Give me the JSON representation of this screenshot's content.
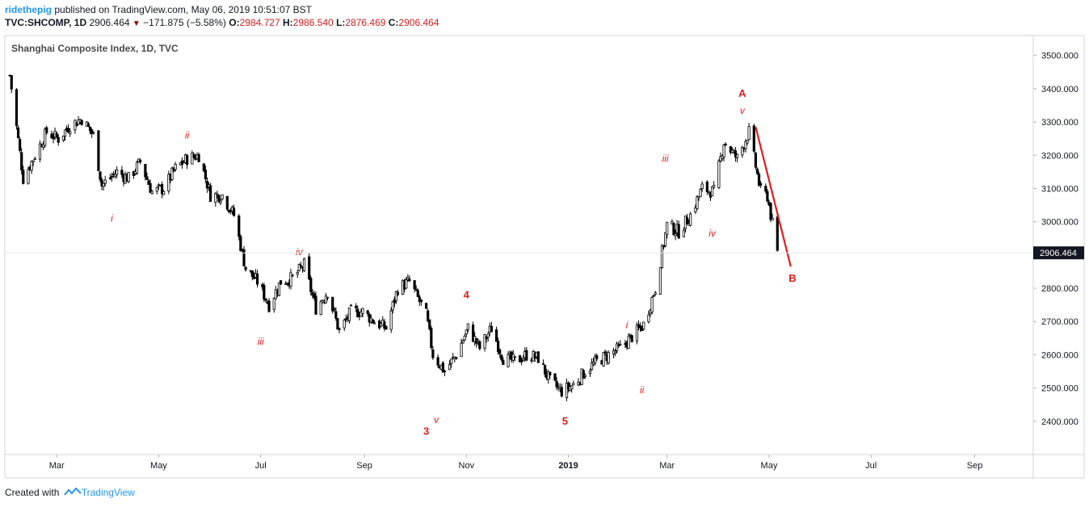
{
  "header": {
    "author": "ridethepig",
    "published": "published on TradingView.com, May 06, 2019 10:51:07 BST",
    "symbol": "TVC:SHCOMP, 1D",
    "last": "2906.464",
    "change": "−171.875 (−5.58%)",
    "o_label": "O:",
    "o_val": "2984.727",
    "h_label": "H:",
    "h_val": "2986.540",
    "l_label": "L:",
    "l_val": "2876.469",
    "c_label": "C:",
    "c_val": "2906.464"
  },
  "footer": {
    "created": "Created with",
    "brand": "TradingView"
  },
  "colors": {
    "candle": "#000000",
    "annotation": "#e31b1b",
    "axis": "#787b86",
    "price_badge": "#131722"
  },
  "chart_data": {
    "type": "candlestick",
    "title": "Shanghai Composite Index, 1D, TVC",
    "y_ticks": [
      "2400.000",
      "2500.000",
      "2600.000",
      "2700.000",
      "2800.000",
      "2900.000",
      "3000.000",
      "3100.000",
      "3200.000",
      "3300.000",
      "3400.000",
      "3500.000"
    ],
    "ylim": [
      2300,
      3560
    ],
    "x_ticks": [
      "Mar",
      "May",
      "Jul",
      "Sep",
      "Nov",
      "2019",
      "Mar",
      "May",
      "Jul",
      "Sep"
    ],
    "last_price": "2906.464",
    "xlim": [
      "2018-01-29",
      "2019-10-06"
    ],
    "series": [
      {
        "date": "2018-02-01",
        "close": 3440
      },
      {
        "date": "2018-02-09",
        "close": 3130
      },
      {
        "date": "2018-02-16",
        "close": 3200
      },
      {
        "date": "2018-02-23",
        "close": 3270
      },
      {
        "date": "2018-03-02",
        "close": 3250
      },
      {
        "date": "2018-03-09",
        "close": 3290
      },
      {
        "date": "2018-03-16",
        "close": 3310
      },
      {
        "date": "2018-03-23",
        "close": 3260
      },
      {
        "date": "2018-03-28",
        "close": 3110
      },
      {
        "date": "2018-04-06",
        "close": 3150
      },
      {
        "date": "2018-04-13",
        "close": 3130
      },
      {
        "date": "2018-04-20",
        "close": 3180
      },
      {
        "date": "2018-04-27",
        "close": 3090
      },
      {
        "date": "2018-05-04",
        "close": 3100
      },
      {
        "date": "2018-05-11",
        "close": 3160
      },
      {
        "date": "2018-05-18",
        "close": 3190
      },
      {
        "date": "2018-05-25",
        "close": 3200
      },
      {
        "date": "2018-06-01",
        "close": 3080
      },
      {
        "date": "2018-06-08",
        "close": 3080
      },
      {
        "date": "2018-06-15",
        "close": 3020
      },
      {
        "date": "2018-06-22",
        "close": 2860
      },
      {
        "date": "2018-06-29",
        "close": 2820
      },
      {
        "date": "2018-07-06",
        "close": 2750
      },
      {
        "date": "2018-07-13",
        "close": 2820
      },
      {
        "date": "2018-07-20",
        "close": 2830
      },
      {
        "date": "2018-07-27",
        "close": 2870
      },
      {
        "date": "2018-08-03",
        "close": 2740
      },
      {
        "date": "2018-08-10",
        "close": 2790
      },
      {
        "date": "2018-08-17",
        "close": 2670
      },
      {
        "date": "2018-08-24",
        "close": 2730
      },
      {
        "date": "2018-08-31",
        "close": 2730
      },
      {
        "date": "2018-09-07",
        "close": 2700
      },
      {
        "date": "2018-09-14",
        "close": 2680
      },
      {
        "date": "2018-09-21",
        "close": 2800
      },
      {
        "date": "2018-09-28",
        "close": 2820
      },
      {
        "date": "2018-10-08",
        "close": 2720
      },
      {
        "date": "2018-10-12",
        "close": 2600
      },
      {
        "date": "2018-10-19",
        "close": 2550
      },
      {
        "date": "2018-10-26",
        "close": 2600
      },
      {
        "date": "2018-11-02",
        "close": 2680
      },
      {
        "date": "2018-11-09",
        "close": 2620
      },
      {
        "date": "2018-11-16",
        "close": 2680
      },
      {
        "date": "2018-11-23",
        "close": 2590
      },
      {
        "date": "2018-11-30",
        "close": 2580
      },
      {
        "date": "2018-12-07",
        "close": 2600
      },
      {
        "date": "2018-12-14",
        "close": 2590
      },
      {
        "date": "2018-12-21",
        "close": 2520
      },
      {
        "date": "2018-12-28",
        "close": 2490
      },
      {
        "date": "2019-01-04",
        "close": 2510
      },
      {
        "date": "2019-01-11",
        "close": 2550
      },
      {
        "date": "2019-01-18",
        "close": 2580
      },
      {
        "date": "2019-01-25",
        "close": 2600
      },
      {
        "date": "2019-02-01",
        "close": 2620
      },
      {
        "date": "2019-02-15",
        "close": 2690
      },
      {
        "date": "2019-02-22",
        "close": 2800
      },
      {
        "date": "2019-03-01",
        "close": 2990
      },
      {
        "date": "2019-03-08",
        "close": 2970
      },
      {
        "date": "2019-03-15",
        "close": 3020
      },
      {
        "date": "2019-03-22",
        "close": 3100
      },
      {
        "date": "2019-03-29",
        "close": 3090
      },
      {
        "date": "2019-04-04",
        "close": 3240
      },
      {
        "date": "2019-04-12",
        "close": 3190
      },
      {
        "date": "2019-04-19",
        "close": 3270
      },
      {
        "date": "2019-04-26",
        "close": 3090
      },
      {
        "date": "2019-04-30",
        "close": 3078
      },
      {
        "date": "2019-05-06",
        "close": 2906
      }
    ],
    "annotations": [
      {
        "text": "A",
        "date": "2019-04-15",
        "price": 3375,
        "bold": true
      },
      {
        "text": "v",
        "date": "2019-04-15",
        "price": 3325,
        "bold": false
      },
      {
        "text": "B",
        "date": "2019-05-15",
        "price": 2820,
        "bold": true
      },
      {
        "text": "iii",
        "date": "2019-02-28",
        "price": 3180,
        "bold": false
      },
      {
        "text": "iv",
        "date": "2019-03-28",
        "price": 2955,
        "bold": false
      },
      {
        "text": "i",
        "date": "2019-02-05",
        "price": 2680,
        "bold": false
      },
      {
        "text": "ii",
        "date": "2019-02-14",
        "price": 2485,
        "bold": false
      },
      {
        "text": "5",
        "date": "2018-12-30",
        "price": 2390,
        "bold": true
      },
      {
        "text": "4",
        "date": "2018-11-01",
        "price": 2770,
        "bold": true
      },
      {
        "text": "3",
        "date": "2018-10-08",
        "price": 2360,
        "bold": true
      },
      {
        "text": "v",
        "date": "2018-10-14",
        "price": 2395,
        "bold": false
      },
      {
        "text": "iii",
        "date": "2018-07-01",
        "price": 2630,
        "bold": false
      },
      {
        "text": "iv",
        "date": "2018-07-24",
        "price": 2900,
        "bold": false
      },
      {
        "text": "i",
        "date": "2018-04-03",
        "price": 3000,
        "bold": false
      },
      {
        "text": "ii",
        "date": "2018-05-18",
        "price": 3250,
        "bold": false
      }
    ],
    "projection": [
      {
        "date": "2019-04-23",
        "price": 3285
      },
      {
        "date": "2019-05-14",
        "price": 2865
      }
    ]
  }
}
